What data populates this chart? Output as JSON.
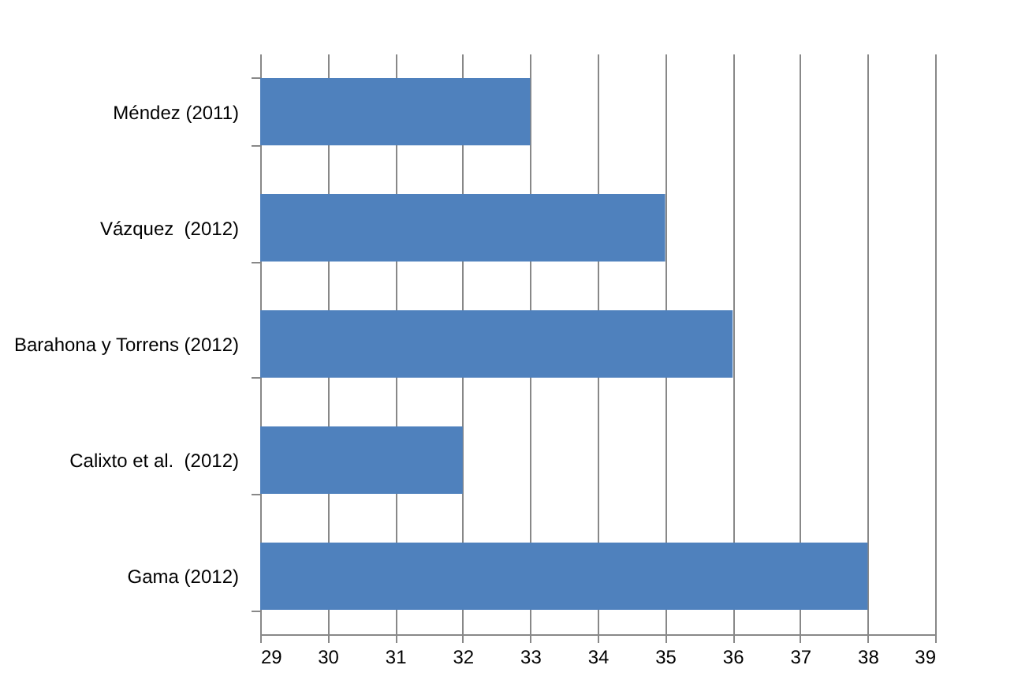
{
  "chart_data": {
    "type": "bar",
    "orientation": "horizontal",
    "categories": [
      "Méndez (2011)",
      "Vázquez  (2012)",
      "Barahona y Torrens (2012)",
      "Calixto et al.  (2012)",
      "Gama (2012)"
    ],
    "values": [
      33,
      35,
      36,
      32,
      38
    ],
    "color": "#4f81bd",
    "xlim": [
      29,
      39
    ],
    "xticks": [
      29,
      30,
      31,
      32,
      33,
      34,
      35,
      36,
      37,
      38,
      39
    ],
    "grid": "x"
  }
}
